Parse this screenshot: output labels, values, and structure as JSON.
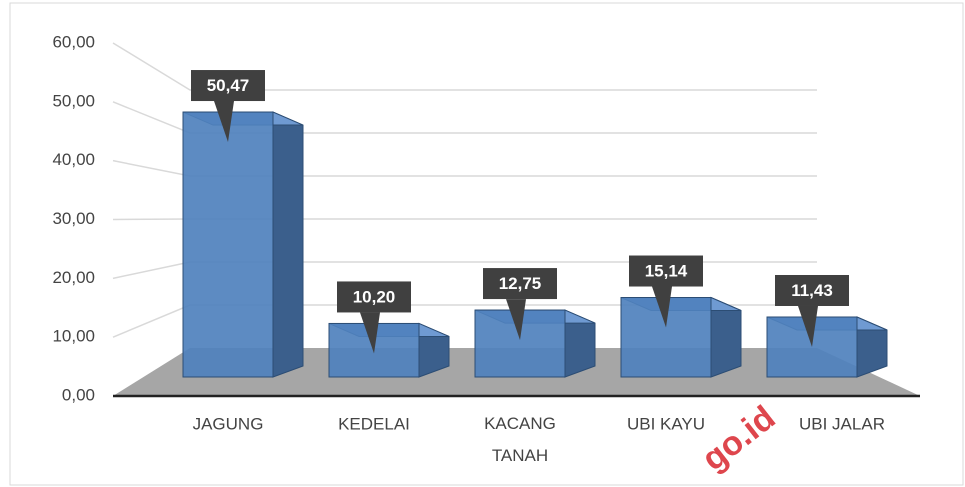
{
  "chart_data": {
    "type": "bar3d",
    "categories": [
      "JAGUNG",
      "KEDELAI",
      "KACANG TANAH",
      "UBI KAYU",
      "UBI JALAR"
    ],
    "values": [
      50.47,
      10.2,
      12.75,
      15.14,
      11.43
    ],
    "value_labels": [
      "50,47",
      "10,20",
      "12,75",
      "15,14",
      "11,43"
    ],
    "color": "#4f81bd",
    "ylim": [
      0,
      60
    ],
    "yticks": [
      {
        "value": 0,
        "label": "0,00"
      },
      {
        "value": 10,
        "label": "10,00"
      },
      {
        "value": 20,
        "label": "20,00"
      },
      {
        "value": 30,
        "label": "30,00"
      },
      {
        "value": 40,
        "label": "40,00"
      },
      {
        "value": 50,
        "label": "50,00"
      },
      {
        "value": 60,
        "label": "60,00"
      }
    ],
    "grid": true,
    "watermark": "go.id"
  }
}
